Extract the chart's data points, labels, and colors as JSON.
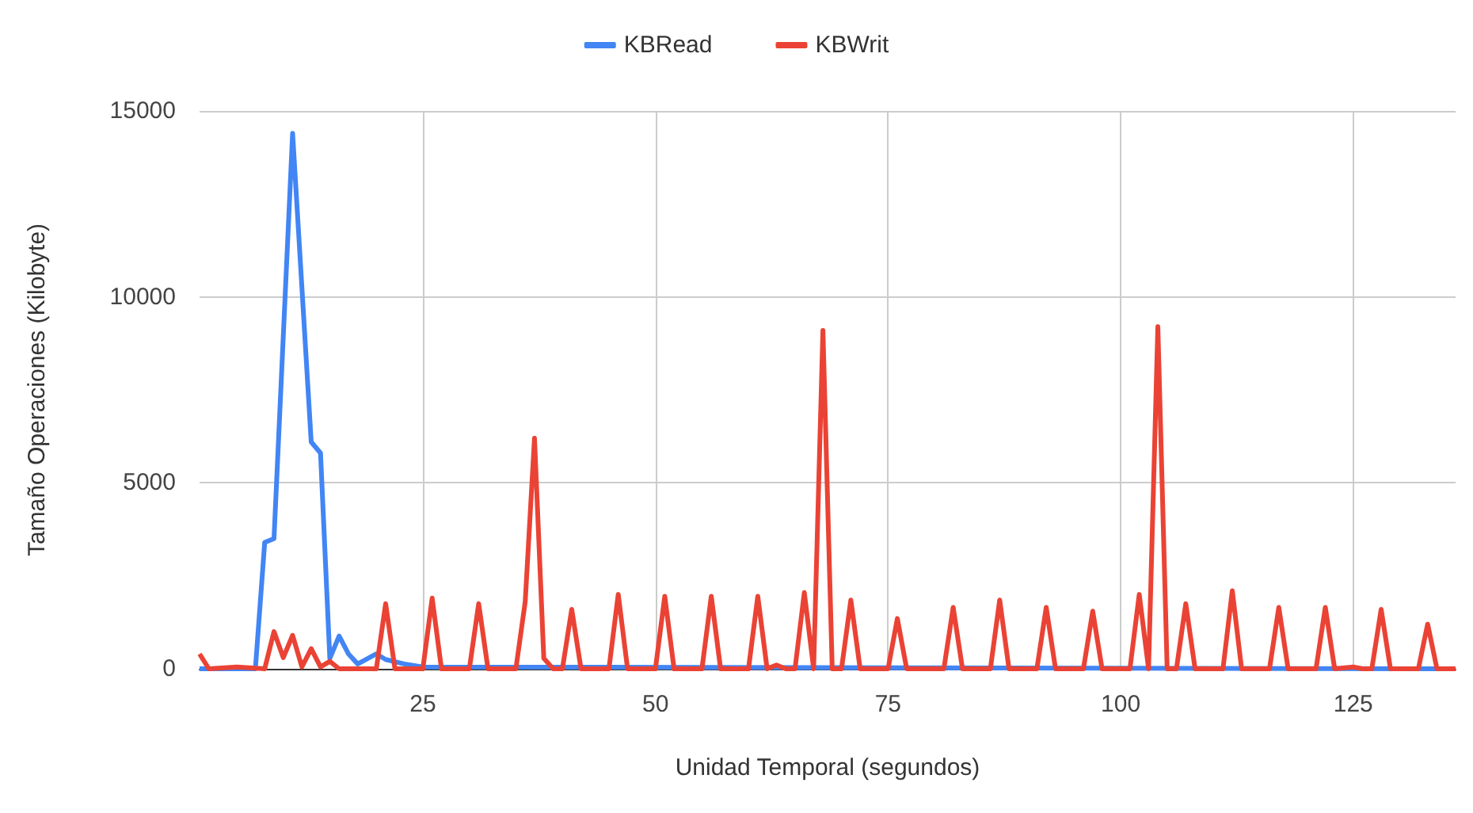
{
  "chart_data": {
    "type": "line",
    "xlabel": "Unidad Temporal (segundos)",
    "ylabel": "Tamaño Operaciones (Kilobyte)",
    "xlim": [
      1,
      136
    ],
    "xticks": [
      25,
      50,
      75,
      100,
      125
    ],
    "ylim": [
      0,
      15000
    ],
    "yticks": [
      0,
      5000,
      10000,
      15000
    ],
    "grid": true,
    "legend": "top",
    "marker": "none",
    "line_style": "solid",
    "series": [
      {
        "name": "KBRead",
        "color": "#4285f4",
        "x": [
          1,
          7,
          8,
          9,
          11,
          13,
          14,
          15,
          16,
          17,
          18,
          20,
          21,
          23,
          25,
          136
        ],
        "values": [
          0,
          0,
          3400,
          3500,
          14400,
          6100,
          5800,
          280,
          880,
          400,
          130,
          400,
          250,
          130,
          50,
          0
        ]
      },
      {
        "name": "KBWrit",
        "color": "#ea4335",
        "x": [
          1,
          2,
          5,
          8,
          9,
          10,
          11,
          12,
          13,
          14,
          15,
          16,
          20,
          21,
          22,
          25,
          26,
          27,
          30,
          31,
          32,
          35,
          36,
          37,
          38,
          39,
          40,
          41,
          42,
          45,
          46,
          47,
          50,
          51,
          52,
          55,
          56,
          57,
          60,
          61,
          62,
          63,
          64,
          65,
          66,
          67,
          68,
          69,
          70,
          71,
          72,
          75,
          76,
          77,
          81,
          82,
          83,
          86,
          87,
          88,
          91,
          92,
          93,
          96,
          97,
          98,
          101,
          102,
          103,
          104,
          105,
          106,
          107,
          108,
          111,
          112,
          113,
          116,
          117,
          118,
          121,
          122,
          123,
          125,
          126,
          127,
          128,
          129,
          132,
          133,
          134,
          136
        ],
        "values": [
          400,
          0,
          50,
          0,
          1000,
          300,
          900,
          50,
          540,
          50,
          200,
          0,
          0,
          1750,
          0,
          0,
          1900,
          0,
          0,
          1750,
          0,
          0,
          1800,
          6200,
          280,
          0,
          0,
          1600,
          0,
          0,
          2000,
          0,
          0,
          1950,
          0,
          0,
          1950,
          0,
          0,
          1950,
          0,
          100,
          0,
          0,
          2050,
          0,
          9100,
          0,
          0,
          1850,
          0,
          0,
          1350,
          0,
          0,
          1650,
          0,
          0,
          1850,
          0,
          0,
          1650,
          0,
          0,
          1550,
          0,
          0,
          2000,
          0,
          9200,
          0,
          0,
          1750,
          0,
          0,
          2100,
          0,
          0,
          1650,
          0,
          0,
          1650,
          0,
          50,
          0,
          0,
          1600,
          0,
          0,
          1200,
          0,
          0
        ]
      }
    ]
  }
}
